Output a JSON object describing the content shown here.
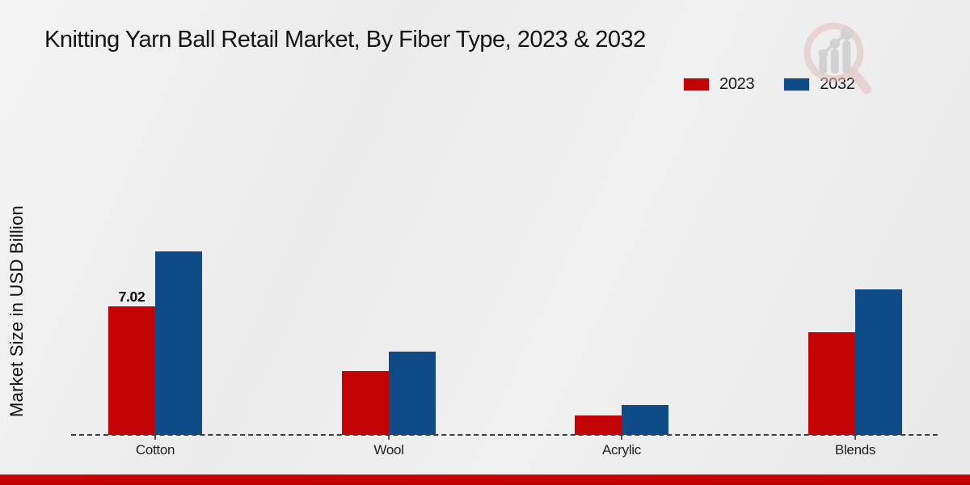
{
  "page": {
    "title": "Knitting Yarn Ball Retail Market, By Fiber Type, 2023 & 2032"
  },
  "y_axis": {
    "label": "Market Size in USD Billion"
  },
  "legend": {
    "items": [
      {
        "label": "2023",
        "color": "#c40404"
      },
      {
        "label": "2032",
        "color": "#0e4b87"
      }
    ]
  },
  "watermark": {
    "icon": "market-research-future-logo",
    "accent_color": "#e3bdbf",
    "bar_color": "#c9c9c9"
  },
  "chart_data": {
    "type": "bar",
    "title": "Knitting Yarn Ball Retail Market, By Fiber Type, 2023 & 2032",
    "categories": [
      "Cotton",
      "Wool",
      "Acrylic",
      "Blends"
    ],
    "series": [
      {
        "name": "2023",
        "color": "#c40404",
        "values": [
          7.02,
          3.5,
          1.05,
          5.6
        ]
      },
      {
        "name": "2032",
        "color": "#0e4b87",
        "values": [
          10.0,
          4.55,
          1.65,
          7.95
        ]
      }
    ],
    "xlabel": "",
    "ylabel": "Market Size in USD Billion",
    "ylim": [
      0,
      11
    ],
    "grid": false,
    "legend_position": "top-right",
    "baseline_style": "dashed",
    "bar_labels": [
      {
        "category": "Cotton",
        "series": "2023",
        "text": "7.02"
      }
    ]
  }
}
